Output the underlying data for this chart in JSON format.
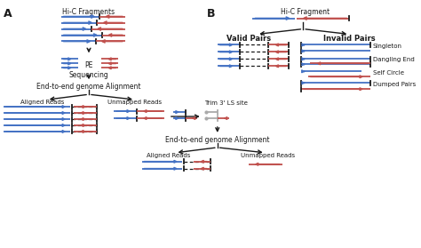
{
  "blue": "#4472C4",
  "red": "#C0504D",
  "gray": "#AAAAAA",
  "black": "#1A1A1A",
  "bg": "#FFFFFF",
  "label_A": "A",
  "label_B": "B",
  "text_hic_fragments": "Hi-C Fragments",
  "text_pe_seq": "PE\nSequencing",
  "text_end_to_end": "End-to-end genome Alignment",
  "text_aligned": "Aligned Reads",
  "text_unmapped": "Unmapped Reads",
  "text_trim": "Trim 3' LS site",
  "text_end_to_end2": "End-to-end genome Alignment",
  "text_aligned2": "Aligned Reads",
  "text_unmapped2": "Unmapped Reads",
  "text_hic_fragment": "Hi-C Fragment",
  "text_valid_pairs": "Valid Pairs",
  "text_invalid_pairs": "Invalid Pairs",
  "text_singleton": "Singleton",
  "text_dangling": "Dangling End",
  "text_self_circle": "Self Circle",
  "text_dumped": "Dumped Pairs"
}
